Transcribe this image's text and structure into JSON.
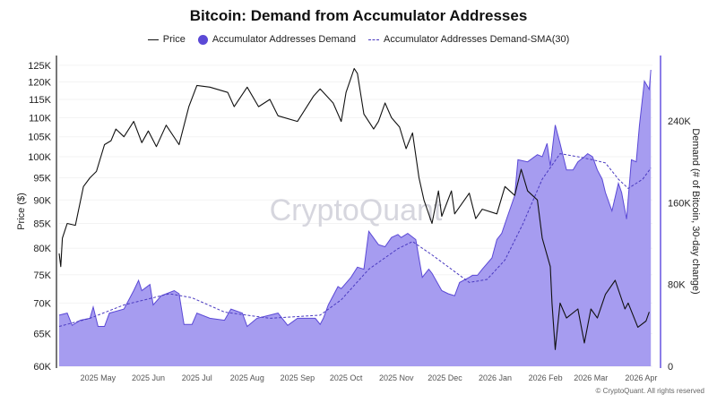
{
  "chart_data": {
    "type": "line",
    "title": "Bitcoin: Demand from Accumulator Addresses",
    "legend": [
      {
        "name": "Price",
        "style": "line",
        "color": "#111111"
      },
      {
        "name": "Accumulator Addresses Demand",
        "style": "area",
        "color": "#5b49d6"
      },
      {
        "name": "Accumulator Addresses Demand-SMA(30)",
        "style": "dashed",
        "color": "#4a3ac0"
      }
    ],
    "legend_position": "top",
    "ylabel_left": "Price ($)",
    "ylabel_right": "Demand (# of Bitcoin, 30-day change)",
    "y_left_scale": "log",
    "y_left_range": [
      60000,
      128000
    ],
    "y_left_ticks": [
      {
        "v": 60000,
        "label": "60K"
      },
      {
        "v": 65000,
        "label": "65K"
      },
      {
        "v": 70000,
        "label": "70K"
      },
      {
        "v": 75000,
        "label": "75K"
      },
      {
        "v": 80000,
        "label": "80K"
      },
      {
        "v": 85000,
        "label": "85K"
      },
      {
        "v": 90000,
        "label": "90K"
      },
      {
        "v": 95000,
        "label": "95K"
      },
      {
        "v": 100000,
        "label": "100K"
      },
      {
        "v": 105000,
        "label": "105K"
      },
      {
        "v": 110000,
        "label": "110K"
      },
      {
        "v": 115000,
        "label": "115K"
      },
      {
        "v": 120000,
        "label": "120K"
      },
      {
        "v": 125000,
        "label": "125K"
      }
    ],
    "y_right_range": [
      0,
      304000
    ],
    "y_right_ticks": [
      {
        "v": 0,
        "label": "0"
      },
      {
        "v": 80000,
        "label": "80K"
      },
      {
        "v": 160000,
        "label": "160K"
      },
      {
        "v": 240000,
        "label": "240K"
      }
    ],
    "x_range": [
      "2025-04-07",
      "2026-04-08"
    ],
    "x_ticks": [
      {
        "d": "2025-05-01",
        "label": "2025 May"
      },
      {
        "d": "2025-06-01",
        "label": "2025 Jun"
      },
      {
        "d": "2025-07-01",
        "label": "2025 Jul"
      },
      {
        "d": "2025-08-01",
        "label": "2025 Aug"
      },
      {
        "d": "2025-09-01",
        "label": "2025 Sep"
      },
      {
        "d": "2025-10-01",
        "label": "2025 Oct"
      },
      {
        "d": "2025-11-01",
        "label": "2025 Nov"
      },
      {
        "d": "2025-12-01",
        "label": "2025 Dec"
      },
      {
        "d": "2026-01-01",
        "label": "2026 Jan"
      },
      {
        "d": "2026-02-01",
        "label": "2026 Feb"
      },
      {
        "d": "2026-03-01",
        "label": "2026 Mar"
      },
      {
        "d": "2026-04-01",
        "label": "2026 Apr"
      }
    ],
    "grid": true,
    "series": [
      {
        "name": "Price",
        "axis": "left",
        "points": [
          [
            "2025-04-07",
            79000
          ],
          [
            "2025-04-08",
            76500
          ],
          [
            "2025-04-09",
            82000
          ],
          [
            "2025-04-12",
            85000
          ],
          [
            "2025-04-17",
            84600
          ],
          [
            "2025-04-22",
            93000
          ],
          [
            "2025-04-26",
            95000
          ],
          [
            "2025-04-30",
            96500
          ],
          [
            "2025-05-05",
            103000
          ],
          [
            "2025-05-09",
            104000
          ],
          [
            "2025-05-12",
            107000
          ],
          [
            "2025-05-17",
            105000
          ],
          [
            "2025-05-23",
            109000
          ],
          [
            "2025-05-28",
            103500
          ],
          [
            "2025-06-01",
            106500
          ],
          [
            "2025-06-06",
            102500
          ],
          [
            "2025-06-12",
            108000
          ],
          [
            "2025-06-20",
            103000
          ],
          [
            "2025-06-26",
            113000
          ],
          [
            "2025-07-01",
            119000
          ],
          [
            "2025-07-09",
            118500
          ],
          [
            "2025-07-20",
            117000
          ],
          [
            "2025-07-24",
            113000
          ],
          [
            "2025-08-01",
            118500
          ],
          [
            "2025-08-08",
            113000
          ],
          [
            "2025-08-15",
            115000
          ],
          [
            "2025-08-20",
            110500
          ],
          [
            "2025-09-01",
            109000
          ],
          [
            "2025-09-11",
            116000
          ],
          [
            "2025-09-15",
            118000
          ],
          [
            "2025-09-23",
            114000
          ],
          [
            "2025-09-28",
            109000
          ],
          [
            "2025-10-01",
            117000
          ],
          [
            "2025-10-06",
            124000
          ],
          [
            "2025-10-08",
            122500
          ],
          [
            "2025-10-12",
            111000
          ],
          [
            "2025-10-18",
            107000
          ],
          [
            "2025-10-21",
            109000
          ],
          [
            "2025-10-25",
            114000
          ],
          [
            "2025-10-29",
            110000
          ],
          [
            "2025-11-03",
            107500
          ],
          [
            "2025-11-07",
            102000
          ],
          [
            "2025-11-11",
            106000
          ],
          [
            "2025-11-15",
            95000
          ],
          [
            "2025-11-18",
            90000
          ],
          [
            "2025-11-23",
            85000
          ],
          [
            "2025-11-27",
            92000
          ],
          [
            "2025-11-29",
            86500
          ],
          [
            "2025-12-05",
            92000
          ],
          [
            "2025-12-07",
            87000
          ],
          [
            "2025-12-16",
            91500
          ],
          [
            "2025-12-20",
            86000
          ],
          [
            "2025-12-24",
            88000
          ],
          [
            "2026-01-02",
            87000
          ],
          [
            "2026-01-07",
            93000
          ],
          [
            "2026-01-13",
            91000
          ],
          [
            "2026-01-17",
            97000
          ],
          [
            "2026-01-21",
            92000
          ],
          [
            "2026-01-27",
            90000
          ],
          [
            "2026-01-30",
            82000
          ],
          [
            "2026-02-04",
            76500
          ],
          [
            "2026-02-05",
            70000
          ],
          [
            "2026-02-07",
            62500
          ],
          [
            "2026-02-10",
            70000
          ],
          [
            "2026-02-14",
            67500
          ],
          [
            "2026-02-21",
            69000
          ],
          [
            "2026-02-25",
            63500
          ],
          [
            "2026-03-01",
            69000
          ],
          [
            "2026-03-05",
            67500
          ],
          [
            "2026-03-10",
            71500
          ],
          [
            "2026-03-16",
            74000
          ],
          [
            "2026-03-22",
            69000
          ],
          [
            "2026-03-24",
            70000
          ],
          [
            "2026-03-30",
            66000
          ],
          [
            "2026-04-04",
            67000
          ],
          [
            "2026-04-06",
            68500
          ]
        ]
      },
      {
        "name": "Accumulator Addresses Demand",
        "axis": "right",
        "points": [
          [
            "2025-04-07",
            50000
          ],
          [
            "2025-04-12",
            52000
          ],
          [
            "2025-04-15",
            40000
          ],
          [
            "2025-04-20",
            45000
          ],
          [
            "2025-04-26",
            47000
          ],
          [
            "2025-04-28",
            58000
          ],
          [
            "2025-05-01",
            39000
          ],
          [
            "2025-05-05",
            39000
          ],
          [
            "2025-05-08",
            52000
          ],
          [
            "2025-05-17",
            56000
          ],
          [
            "2025-05-23",
            74000
          ],
          [
            "2025-05-26",
            84000
          ],
          [
            "2025-05-28",
            74000
          ],
          [
            "2025-06-02",
            80000
          ],
          [
            "2025-06-04",
            60000
          ],
          [
            "2025-06-09",
            69000
          ],
          [
            "2025-06-17",
            74000
          ],
          [
            "2025-06-20",
            71000
          ],
          [
            "2025-06-23",
            41000
          ],
          [
            "2025-06-28",
            41000
          ],
          [
            "2025-07-01",
            52000
          ],
          [
            "2025-07-09",
            47000
          ],
          [
            "2025-07-18",
            45000
          ],
          [
            "2025-07-22",
            56000
          ],
          [
            "2025-07-29",
            52000
          ],
          [
            "2025-08-01",
            39000
          ],
          [
            "2025-08-07",
            47000
          ],
          [
            "2025-08-15",
            50000
          ],
          [
            "2025-08-20",
            52000
          ],
          [
            "2025-08-26",
            40000
          ],
          [
            "2025-09-01",
            47000
          ],
          [
            "2025-09-06",
            47000
          ],
          [
            "2025-09-12",
            47000
          ],
          [
            "2025-09-15",
            41000
          ],
          [
            "2025-09-17",
            47000
          ],
          [
            "2025-09-20",
            60000
          ],
          [
            "2025-09-26",
            78000
          ],
          [
            "2025-09-28",
            76000
          ],
          [
            "2025-10-04",
            87000
          ],
          [
            "2025-10-08",
            97000
          ],
          [
            "2025-10-12",
            95000
          ],
          [
            "2025-10-15",
            132000
          ],
          [
            "2025-10-21",
            119000
          ],
          [
            "2025-10-25",
            117000
          ],
          [
            "2025-10-29",
            126000
          ],
          [
            "2025-11-02",
            129000
          ],
          [
            "2025-11-04",
            126000
          ],
          [
            "2025-11-08",
            130000
          ],
          [
            "2025-11-13",
            124000
          ],
          [
            "2025-11-17",
            87000
          ],
          [
            "2025-11-21",
            95000
          ],
          [
            "2025-11-23",
            91000
          ],
          [
            "2025-11-29",
            74000
          ],
          [
            "2025-12-03",
            71000
          ],
          [
            "2025-12-07",
            69000
          ],
          [
            "2025-12-10",
            82000
          ],
          [
            "2025-12-16",
            87000
          ],
          [
            "2025-12-18",
            89000
          ],
          [
            "2025-12-21",
            89000
          ],
          [
            "2025-12-24",
            95000
          ],
          [
            "2025-12-30",
            106000
          ],
          [
            "2026-01-02",
            124000
          ],
          [
            "2026-01-05",
            130000
          ],
          [
            "2026-01-08",
            144000
          ],
          [
            "2026-01-13",
            167000
          ],
          [
            "2026-01-15",
            202000
          ],
          [
            "2026-01-21",
            200000
          ],
          [
            "2026-01-27",
            207000
          ],
          [
            "2026-01-30",
            205000
          ],
          [
            "2026-02-02",
            218000
          ],
          [
            "2026-02-04",
            196000
          ],
          [
            "2026-02-07",
            236000
          ],
          [
            "2026-02-10",
            218000
          ],
          [
            "2026-02-14",
            192000
          ],
          [
            "2026-02-18",
            192000
          ],
          [
            "2026-02-21",
            200000
          ],
          [
            "2026-02-25",
            205000
          ],
          [
            "2026-02-27",
            208000
          ],
          [
            "2026-03-02",
            205000
          ],
          [
            "2026-03-05",
            192000
          ],
          [
            "2026-03-08",
            183000
          ],
          [
            "2026-03-10",
            170000
          ],
          [
            "2026-03-14",
            152000
          ],
          [
            "2026-03-18",
            179000
          ],
          [
            "2026-03-20",
            170000
          ],
          [
            "2026-03-23",
            144000
          ],
          [
            "2026-03-26",
            202000
          ],
          [
            "2026-03-29",
            200000
          ],
          [
            "2026-03-31",
            236000
          ],
          [
            "2026-04-03",
            279000
          ],
          [
            "2026-04-06",
            271000
          ],
          [
            "2026-04-07",
            290000
          ]
        ]
      },
      {
        "name": "Accumulator Addresses Demand-SMA(30)",
        "axis": "right",
        "points": [
          [
            "2025-04-07",
            39000
          ],
          [
            "2025-04-26",
            47000
          ],
          [
            "2025-05-17",
            60000
          ],
          [
            "2025-06-14",
            71000
          ],
          [
            "2025-06-28",
            67000
          ],
          [
            "2025-07-18",
            53000
          ],
          [
            "2025-08-15",
            47000
          ],
          [
            "2025-09-15",
            50000
          ],
          [
            "2025-09-28",
            65000
          ],
          [
            "2025-10-15",
            95000
          ],
          [
            "2025-11-02",
            115000
          ],
          [
            "2025-11-11",
            122000
          ],
          [
            "2025-11-23",
            109000
          ],
          [
            "2025-12-05",
            95000
          ],
          [
            "2025-12-16",
            82000
          ],
          [
            "2025-12-27",
            85000
          ],
          [
            "2026-01-07",
            104000
          ],
          [
            "2026-01-18",
            139000
          ],
          [
            "2026-01-30",
            183000
          ],
          [
            "2026-02-10",
            208000
          ],
          [
            "2026-02-21",
            205000
          ],
          [
            "2026-03-02",
            202000
          ],
          [
            "2026-03-10",
            199000
          ],
          [
            "2026-03-18",
            183000
          ],
          [
            "2026-03-24",
            174000
          ],
          [
            "2026-04-02",
            183000
          ],
          [
            "2026-04-07",
            194000
          ]
        ]
      }
    ]
  },
  "watermark": "CryptoQuant",
  "copyright": "© CryptoQuant. All rights reserved"
}
